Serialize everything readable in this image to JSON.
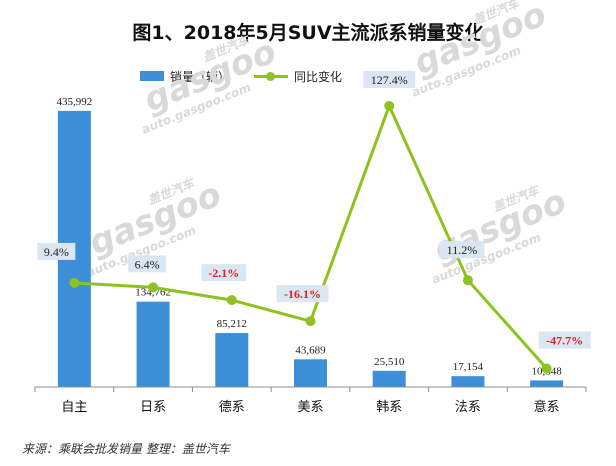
{
  "colors": {
    "bar": "#3d8fd8",
    "line": "#8dc21f",
    "label_box": "#dbe6f3",
    "negative_text": "#e0201b",
    "positive_text": "#222222"
  },
  "source_note": "来源：乘联会批发销量    整理：盖世汽车",
  "watermark": {
    "brand": "gasgoo",
    "chinese": "盖世汽车",
    "url": "auto.gasgoo.com"
  },
  "chart_data": {
    "type": "bar",
    "title": "图1、2018年5月SUV主流派系销量变化",
    "categories": [
      "自主",
      "日系",
      "德系",
      "美系",
      "韩系",
      "法系",
      "意系"
    ],
    "series": [
      {
        "name": "销量（辆）",
        "type": "bar",
        "axis": "left",
        "values": [
          435992,
          134762,
          85212,
          43689,
          25510,
          17154,
          10348
        ],
        "labels": [
          "435,992",
          "134,762",
          "85,212",
          "43,689",
          "25,510",
          "17,154",
          "10,348"
        ]
      },
      {
        "name": "同比变化",
        "type": "line",
        "axis": "right",
        "values": [
          9.4,
          6.4,
          -2.1,
          -16.1,
          127.4,
          11.2,
          -47.7
        ],
        "labels": [
          "9.4%",
          "6.4%",
          "-2.1%",
          "-16.1%",
          "127.4%",
          "11.2%",
          "-47.7%"
        ]
      }
    ],
    "ylim_left": [
      0,
      450000
    ],
    "ylim_right": [
      -60,
      130
    ],
    "grid": false,
    "legend": "top"
  }
}
